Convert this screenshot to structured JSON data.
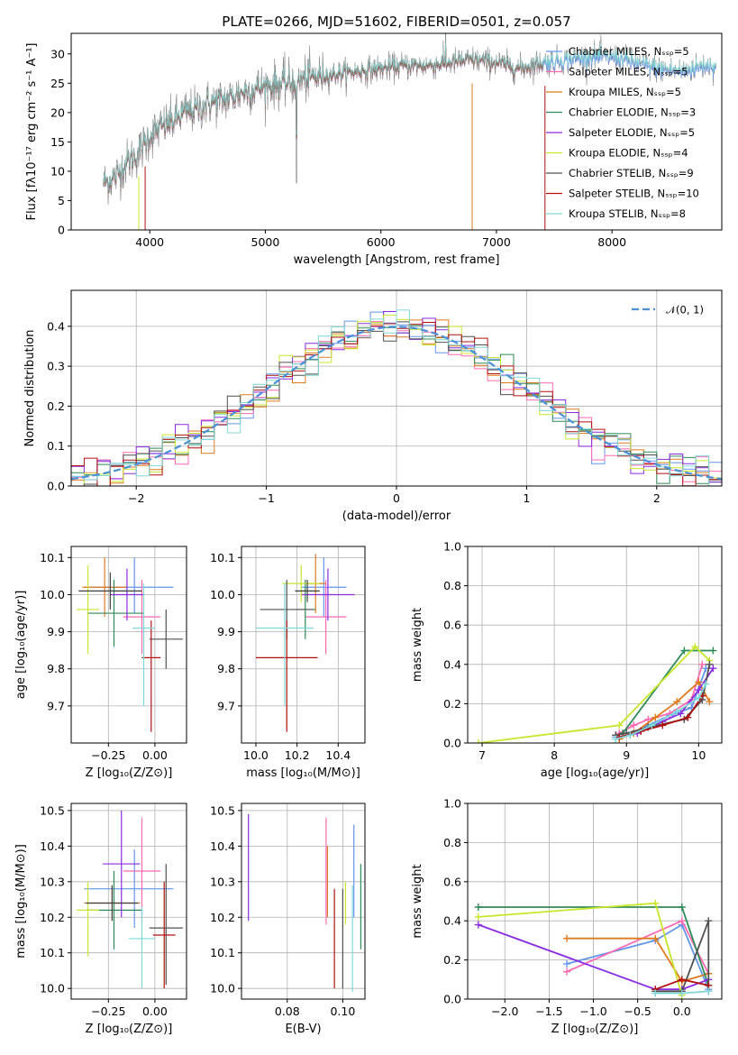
{
  "chart_data": [
    {
      "id": "spectrum",
      "type": "line",
      "title": "PLATE=0266, MJD=51602, FIBERID=0501, z=0.057",
      "xlabel": "wavelength [Angstrom, rest frame]",
      "ylabel": "Flux [fλ10⁻¹⁷ erg cm⁻² s⁻¹ A⁻¹]",
      "xlim": [
        3320,
        8950
      ],
      "ylim": [
        0,
        33.5
      ],
      "xticks": [
        4000,
        5000,
        6000,
        7000,
        8000
      ],
      "yticks": [
        0,
        5,
        10,
        15,
        20,
        25,
        30
      ],
      "grid": false,
      "legend_placement": "right",
      "continuum": {
        "x": [
          3600,
          3700,
          3800,
          3900,
          4000,
          4100,
          4200,
          4300,
          4400,
          4500,
          4600,
          4700,
          4800,
          4900,
          5000,
          5200,
          5400,
          5600,
          5800,
          6000,
          6200,
          6400,
          6600,
          6800,
          7000,
          7200,
          7400,
          7600,
          7800,
          8000,
          8200,
          8400,
          8600,
          8800
        ],
        "y": [
          8,
          9,
          11.5,
          13,
          16,
          17.5,
          18.5,
          20,
          20.5,
          21.5,
          22,
          22.5,
          23.5,
          24,
          24.5,
          25,
          26,
          26.5,
          27,
          27.5,
          28,
          28,
          28.5,
          29,
          28.5,
          27.5,
          28.5,
          29,
          29.5,
          29.5,
          28.5,
          27.5,
          27,
          28
        ]
      },
      "series": [
        {
          "name": "Chabrier MILES, N_SSP=5",
          "color": "#6495ED"
        },
        {
          "name": "Salpeter MILES, N_SSP=5",
          "color": "#FF69B4"
        },
        {
          "name": "Kroupa MILES, N_SSP=5",
          "color": "#E07A1F"
        },
        {
          "name": "Chabrier ELODIE, N_SSP=3",
          "color": "#2E8B57"
        },
        {
          "name": "Salpeter ELODIE, N_SSP=5",
          "color": "#8A2BE2"
        },
        {
          "name": "Kroupa ELODIE, N_SSP=4",
          "color": "#C8E62C"
        },
        {
          "name": "Chabrier STELIB, N_SSP=9",
          "color": "#505050"
        },
        {
          "name": "Salpeter STELIB, N_SSP=10",
          "color": "#B21010"
        },
        {
          "name": "Kroupa STELIB, N_SSP=8",
          "color": "#7FD8D8"
        }
      ]
    },
    {
      "id": "residuals",
      "type": "histogram",
      "xlabel": "(data-model)/error",
      "ylabel": "Normed distribution",
      "xlim": [
        -2.5,
        2.5
      ],
      "ylim": [
        0,
        0.49
      ],
      "xticks": [
        -2,
        -1,
        0,
        1,
        2
      ],
      "yticks": [
        0.0,
        0.1,
        0.2,
        0.3,
        0.4
      ],
      "grid": true,
      "legend_placement": "top-right",
      "legend_label": "𝒩(0, 1)",
      "gaussian_color": "#4A90D9",
      "bin_width": 0.1,
      "colors": [
        "#6495ED",
        "#FF69B4",
        "#E07A1F",
        "#2E8B57",
        "#8A2BE2",
        "#C8E62C",
        "#505050",
        "#B21010",
        "#7FD8D8"
      ]
    },
    {
      "id": "age-vs-Z",
      "type": "errorbar",
      "xlabel": "Z [log₁₀(Z/Z⊙)]",
      "ylabel": "age  [log₁₀(age/yr)]",
      "xlim": [
        -0.45,
        0.17
      ],
      "ylim": [
        9.6,
        10.13
      ],
      "xticks": [
        -0.25,
        0.0
      ],
      "xticklabels": [
        "−0.25",
        "0.00"
      ],
      "yticks": [
        9.7,
        9.8,
        9.9,
        10.0,
        10.1
      ],
      "grid": true,
      "points": [
        {
          "color": "#6495ED",
          "x": -0.11,
          "xerr": [
            0.27,
            0.21
          ],
          "y": 10.02,
          "yerr": [
            0.07,
            0.08
          ]
        },
        {
          "color": "#FF69B4",
          "x": -0.07,
          "xerr": [
            0.1,
            0.1
          ],
          "y": 9.94,
          "yerr": [
            0.1,
            0.1
          ]
        },
        {
          "color": "#E07A1F",
          "x": -0.27,
          "xerr": [
            0.12,
            0.12
          ],
          "y": 10.02,
          "yerr": [
            0.08,
            0.08
          ]
        },
        {
          "color": "#2E8B57",
          "x": -0.22,
          "xerr": [
            0.14,
            0.16
          ],
          "y": 9.95,
          "yerr": [
            0.09,
            0.09
          ]
        },
        {
          "color": "#8A2BE2",
          "x": -0.15,
          "xerr": [
            0.09,
            0.09
          ],
          "y": 10.0,
          "yerr": [
            0.07,
            0.07
          ]
        },
        {
          "color": "#C8E62C",
          "x": -0.36,
          "xerr": [
            0.06,
            0.06
          ],
          "y": 9.96,
          "yerr": [
            0.12,
            0.12
          ]
        },
        {
          "color": "#505050",
          "x": 0.06,
          "xerr": [
            0.09,
            0.09
          ],
          "y": 9.88,
          "yerr": [
            0.08,
            0.08
          ]
        },
        {
          "color": "#B21010",
          "x": -0.02,
          "xerr": [
            0.05,
            0.05
          ],
          "y": 9.83,
          "yerr": [
            0.2,
            0.1
          ]
        },
        {
          "color": "#7FD8D8",
          "x": -0.06,
          "xerr": [
            0.06,
            0.06
          ],
          "y": 9.91,
          "yerr": [
            0.21,
            0.12
          ]
        },
        {
          "color": "#404040",
          "x": -0.24,
          "xerr": [
            0.17,
            0.17
          ],
          "y": 10.01,
          "yerr": [
            0.05,
            0.05
          ]
        }
      ]
    },
    {
      "id": "age-vs-mass",
      "type": "errorbar",
      "xlabel": "mass [log₁₀(M/M⊙)]",
      "ylabel": "",
      "xlim": [
        9.93,
        10.53
      ],
      "ylim": [
        9.6,
        10.13
      ],
      "xticks": [
        10.0,
        10.2,
        10.4
      ],
      "yticks": [
        9.7,
        9.8,
        9.9,
        10.0,
        10.1
      ],
      "grid": true,
      "points": [
        {
          "color": "#6495ED",
          "x": 10.33,
          "xerr": [
            0.11,
            0.11
          ],
          "y": 10.02,
          "yerr": [
            0.08,
            0.08
          ]
        },
        {
          "color": "#FF69B4",
          "x": 10.34,
          "xerr": [
            0.1,
            0.1
          ],
          "y": 9.94,
          "yerr": [
            0.1,
            0.1
          ]
        },
        {
          "color": "#E07A1F",
          "x": 10.29,
          "xerr": [
            0.05,
            0.05
          ],
          "y": 10.03,
          "yerr": [
            0.08,
            0.08
          ]
        },
        {
          "color": "#2E8B57",
          "x": 10.24,
          "xerr": [
            0.05,
            0.05
          ],
          "y": 9.96,
          "yerr": [
            0.08,
            0.08
          ]
        },
        {
          "color": "#8A2BE2",
          "x": 10.35,
          "xerr": [
            0.13,
            0.13
          ],
          "y": 10.0,
          "yerr": [
            0.07,
            0.07
          ]
        },
        {
          "color": "#C8E62C",
          "x": 10.22,
          "xerr": [
            0.09,
            0.09
          ],
          "y": 10.03,
          "yerr": [
            0.05,
            0.05
          ]
        },
        {
          "color": "#505050",
          "x": 10.15,
          "xerr": [
            0.13,
            0.13
          ],
          "y": 9.96,
          "yerr": [
            0.08,
            0.08
          ]
        },
        {
          "color": "#B21010",
          "x": 10.15,
          "xerr": [
            0.15,
            0.15
          ],
          "y": 9.83,
          "yerr": [
            0.2,
            0.1
          ]
        },
        {
          "color": "#7FD8D8",
          "x": 10.14,
          "xerr": [
            0.14,
            0.14
          ],
          "y": 9.91,
          "yerr": [
            0.21,
            0.12
          ]
        },
        {
          "color": "#404040",
          "x": 10.25,
          "xerr": [
            0.06,
            0.06
          ],
          "y": 10.01,
          "yerr": [
            0.03,
            0.03
          ]
        }
      ]
    },
    {
      "id": "weight-vs-age",
      "type": "line",
      "xlabel": "age  [log₁₀(age/yr)]",
      "ylabel": "mass weight",
      "xlim": [
        6.8,
        10.32
      ],
      "ylim": [
        0,
        1.0
      ],
      "xticks": [
        7,
        8,
        9,
        10
      ],
      "yticks": [
        0.0,
        0.2,
        0.4,
        0.6,
        0.8,
        1.0
      ],
      "grid": true,
      "series": [
        {
          "color": "#6495ED",
          "x": [
            8.85,
            9.05,
            9.3,
            9.6,
            9.9,
            10.1
          ],
          "y": [
            0.03,
            0.04,
            0.09,
            0.14,
            0.18,
            0.38
          ]
        },
        {
          "color": "#FF69B4",
          "x": [
            8.9,
            9.1,
            9.3,
            9.6,
            9.9,
            10.05
          ],
          "y": [
            0.05,
            0.09,
            0.12,
            0.15,
            0.22,
            0.4
          ]
        },
        {
          "color": "#E07A1F",
          "x": [
            8.9,
            9.1,
            9.4,
            9.7,
            10.0,
            10.15
          ],
          "y": [
            0.02,
            0.05,
            0.13,
            0.21,
            0.31,
            0.21
          ]
        },
        {
          "color": "#2E8B57",
          "x": [
            8.95,
            9.8,
            10.2
          ],
          "y": [
            0.05,
            0.47,
            0.47
          ]
        },
        {
          "color": "#8A2BE2",
          "x": [
            8.9,
            9.15,
            9.5,
            9.75,
            10.0,
            10.2
          ],
          "y": [
            0.03,
            0.05,
            0.11,
            0.15,
            0.27,
            0.38
          ]
        },
        {
          "color": "#C8E62C",
          "x": [
            6.95,
            8.9,
            9.95,
            10.15
          ],
          "y": [
            0.0,
            0.09,
            0.49,
            0.42
          ]
        },
        {
          "color": "#505050",
          "x": [
            8.85,
            9.0,
            9.3,
            9.8,
            10.05,
            10.15
          ],
          "y": [
            0.04,
            0.05,
            0.08,
            0.12,
            0.22,
            0.4
          ]
        },
        {
          "color": "#B21010",
          "x": [
            8.9,
            9.2,
            9.5,
            9.85,
            10.05
          ],
          "y": [
            0.03,
            0.06,
            0.09,
            0.13,
            0.24
          ]
        },
        {
          "color": "#7FD8D8",
          "x": [
            8.85,
            9.05,
            9.35,
            9.7,
            10.0,
            10.1
          ],
          "y": [
            0.02,
            0.04,
            0.09,
            0.16,
            0.23,
            0.3
          ]
        }
      ]
    },
    {
      "id": "mass-vs-Z",
      "type": "errorbar",
      "xlabel": "Z [log₁₀(Z/Z⊙)]",
      "ylabel": "mass [log₁₀(M/M⊙)]",
      "xlim": [
        -0.45,
        0.17
      ],
      "ylim": [
        9.97,
        10.52
      ],
      "xticks": [
        -0.25,
        0.0
      ],
      "xticklabels": [
        "−0.25",
        "0.00"
      ],
      "yticks": [
        10.0,
        10.1,
        10.2,
        10.3,
        10.4,
        10.5
      ],
      "grid": true,
      "points": [
        {
          "color": "#6495ED",
          "x": -0.11,
          "xerr": [
            0.27,
            0.21
          ],
          "y": 10.28,
          "yerr": [
            0.11,
            0.11
          ]
        },
        {
          "color": "#FF69B4",
          "x": -0.07,
          "xerr": [
            0.1,
            0.1
          ],
          "y": 10.33,
          "yerr": [
            0.15,
            0.15
          ]
        },
        {
          "color": "#E07A1F",
          "x": -0.23,
          "xerr": [
            0.15,
            0.15
          ],
          "y": 10.24,
          "yerr": [
            0.05,
            0.05
          ]
        },
        {
          "color": "#2E8B57",
          "x": -0.22,
          "xerr": [
            0.15,
            0.15
          ],
          "y": 10.22,
          "yerr": [
            0.11,
            0.11
          ]
        },
        {
          "color": "#8A2BE2",
          "x": -0.18,
          "xerr": [
            0.1,
            0.1
          ],
          "y": 10.35,
          "yerr": [
            0.15,
            0.15
          ]
        },
        {
          "color": "#C8E62C",
          "x": -0.36,
          "xerr": [
            0.06,
            0.06
          ],
          "y": 10.22,
          "yerr": [
            0.13,
            0.08
          ]
        },
        {
          "color": "#505050",
          "x": 0.06,
          "xerr": [
            0.09,
            0.09
          ],
          "y": 10.17,
          "yerr": [
            0.16,
            0.18
          ]
        },
        {
          "color": "#B21010",
          "x": 0.05,
          "xerr": [
            0.06,
            0.06
          ],
          "y": 10.15,
          "yerr": [
            0.15,
            0.15
          ]
        },
        {
          "color": "#7FD8D8",
          "x": -0.07,
          "xerr": [
            0.07,
            0.07
          ],
          "y": 10.14,
          "yerr": [
            0.14,
            0.09
          ]
        },
        {
          "color": "#404040",
          "x": -0.23,
          "xerr": [
            0.14,
            0.14
          ],
          "y": 10.24,
          "yerr": [
            0.05,
            0.05
          ]
        }
      ]
    },
    {
      "id": "mass-vs-EBV",
      "type": "errorbar",
      "xlabel": "E(B-V)",
      "ylabel": "",
      "xlim": [
        0.0635,
        0.108
      ],
      "ylim": [
        9.97,
        10.52
      ],
      "xticks": [
        0.08,
        0.1
      ],
      "yticks": [
        10.0,
        10.1,
        10.2,
        10.3,
        10.4,
        10.5
      ],
      "grid": true,
      "points": [
        {
          "color": "#8A2BE2",
          "x": 0.066,
          "y": 10.34,
          "yerr": [
            0.15,
            0.15
          ]
        },
        {
          "color": "#FF69B4",
          "x": 0.094,
          "y": 10.33,
          "yerr": [
            0.15,
            0.15
          ]
        },
        {
          "color": "#E07A1F",
          "x": 0.0945,
          "y": 10.3,
          "yerr": [
            0.1,
            0.1
          ]
        },
        {
          "color": "#B21010",
          "x": 0.097,
          "y": 10.14,
          "yerr": [
            0.14,
            0.14
          ]
        },
        {
          "color": "#505050",
          "x": 0.1,
          "y": 10.14,
          "yerr": [
            0.14,
            0.14
          ]
        },
        {
          "color": "#C8E62C",
          "x": 0.101,
          "y": 10.24,
          "yerr": [
            0.06,
            0.06
          ]
        },
        {
          "color": "#6495ED",
          "x": 0.104,
          "y": 10.33,
          "yerr": [
            0.13,
            0.13
          ]
        },
        {
          "color": "#7FD8D8",
          "x": 0.1035,
          "y": 10.14,
          "yerr": [
            0.15,
            0.15
          ]
        },
        {
          "color": "#2E8B57",
          "x": 0.1065,
          "y": 10.23,
          "yerr": [
            0.12,
            0.12
          ]
        }
      ]
    },
    {
      "id": "weight-vs-Z",
      "type": "line",
      "xlabel": "Z [log₁₀(Z/Z⊙)]",
      "ylabel": "mass weight",
      "xlim": [
        -2.42,
        0.45
      ],
      "ylim": [
        0,
        1.0
      ],
      "xticks": [
        -2.0,
        -1.5,
        -1.0,
        -0.5,
        0.0
      ],
      "xticklabels": [
        "−2.0",
        "−1.5",
        "−1.0",
        "−0.5",
        "0.0"
      ],
      "yticks": [
        0.0,
        0.2,
        0.4,
        0.6,
        0.8,
        1.0
      ],
      "grid": true,
      "series": [
        {
          "color": "#6495ED",
          "x": [
            -1.3,
            -0.3,
            0.0,
            0.3
          ],
          "y": [
            0.18,
            0.3,
            0.38,
            0.05
          ]
        },
        {
          "color": "#FF69B4",
          "x": [
            -1.3,
            0.0,
            0.3
          ],
          "y": [
            0.14,
            0.4,
            0.13
          ]
        },
        {
          "color": "#E07A1F",
          "x": [
            -1.3,
            -0.3,
            0.0,
            0.3
          ],
          "y": [
            0.31,
            0.31,
            0.09,
            0.13
          ]
        },
        {
          "color": "#2E8B57",
          "x": [
            -2.3,
            0.0,
            0.3
          ],
          "y": [
            0.47,
            0.47,
            0.07
          ]
        },
        {
          "color": "#8A2BE2",
          "x": [
            -2.3,
            -0.3,
            0.0,
            0.3
          ],
          "y": [
            0.38,
            0.05,
            0.05,
            0.1
          ]
        },
        {
          "color": "#C8E62C",
          "x": [
            -2.3,
            -0.3,
            0.0
          ],
          "y": [
            0.42,
            0.49,
            0.02
          ]
        },
        {
          "color": "#505050",
          "x": [
            -0.3,
            0.0,
            0.3,
            0.3
          ],
          "y": [
            0.04,
            0.04,
            0.4,
            0.04
          ]
        },
        {
          "color": "#B21010",
          "x": [
            -0.3,
            0.0,
            0.3
          ],
          "y": [
            0.05,
            0.1,
            0.07
          ]
        },
        {
          "color": "#7FD8D8",
          "x": [
            -0.3,
            0.0,
            0.3
          ],
          "y": [
            0.03,
            0.03,
            0.04
          ]
        }
      ]
    }
  ]
}
